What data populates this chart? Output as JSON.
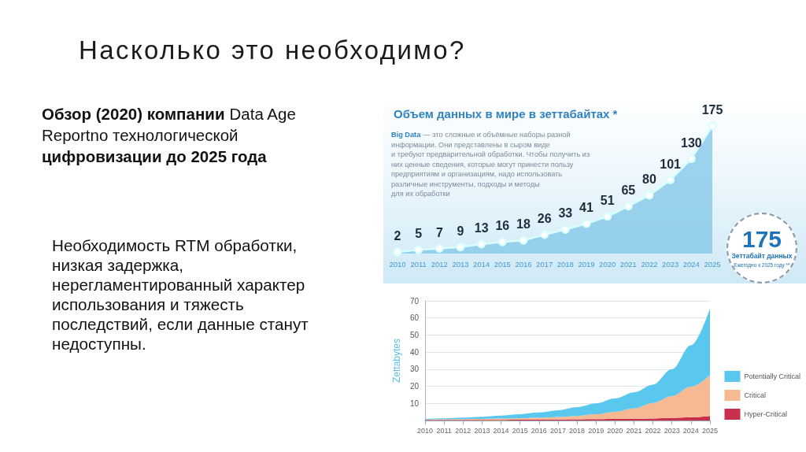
{
  "chart_data": [
    {
      "type": "other",
      "title": "Насколько это необходимо?",
      "annotations": [
        "Обзор (2020) компании",
        "Data Age",
        "Reportno технологической",
        "цифровизации до 2025 года",
        "Необходимость RTM обработки, низкая задержка, нерегламентированный характер использования и тяжесть последствий, если данные станут недоступны."
      ]
    },
    {
      "type": "area",
      "title": "Объем данных в мире в зеттабайтах *",
      "categories": [
        "2010",
        "2011",
        "2012",
        "2013",
        "2014",
        "2015",
        "2016",
        "2017",
        "2018",
        "2019",
        "2020",
        "2021",
        "2022",
        "2023",
        "2024",
        "2025"
      ],
      "values": [
        2,
        5,
        7,
        9,
        13,
        16,
        18,
        26,
        33,
        41,
        51,
        65,
        80,
        101,
        130,
        175
      ],
      "color": "#86c8e8",
      "marker": "circle",
      "data_labels": true,
      "tick_labels": "x",
      "annotations": [
        "Big Data",
        "— это сложные и объёмные наборы разной",
        "информации. Они представлены в сыром виде",
        "и требуют предварительной обработки. Чтобы получить из",
        "них ценные сведения, которые могут принести пользу",
        "предприятиям и организациям, надо использовать",
        "различные инструменты, подходы и методы",
        "для их обработки",
        "175",
        "Зеттабайт данных",
        "Ежегодно к 2025 году **"
      ]
    },
    {
      "type": "area",
      "stacked": true,
      "categories": [
        "2010",
        "2011",
        "2012",
        "2013",
        "2014",
        "2015",
        "2016",
        "2017",
        "2018",
        "2019",
        "2020",
        "2021",
        "2022",
        "2023",
        "2024",
        "2025"
      ],
      "ylabel": "Zettabytes",
      "ylim": [
        0,
        70
      ],
      "yticks": [
        {
          "value": 0,
          "label": null
        },
        10,
        20,
        30,
        40,
        50,
        60,
        70
      ],
      "grid": "y",
      "legend": "right",
      "series": [
        {
          "name": "Hyper-Critical",
          "color": "#c9304b",
          "values": [
            0.3,
            0.3,
            0.3,
            0.4,
            0.4,
            0.5,
            0.5,
            0.6,
            0.7,
            0.8,
            0.9,
            1.0,
            1.2,
            1.5,
            1.9,
            2.7
          ]
        },
        {
          "name": "Critical",
          "color": "#f6b993",
          "values": [
            0.3,
            0.4,
            0.5,
            0.5,
            0.7,
            0.8,
            1.1,
            1.5,
            2.0,
            2.9,
            4.2,
            6.1,
            9.1,
            12.8,
            17.9,
            23.8
          ]
        },
        {
          "name": "Potentially Critical",
          "color": "#5ac8ee",
          "values": [
            0.4,
            0.6,
            0.9,
            1.3,
            1.8,
            2.4,
            3.1,
            3.9,
            5.1,
            6.3,
            7.8,
            9.4,
            10.7,
            15.7,
            24.2,
            39.0
          ]
        }
      ]
    }
  ]
}
